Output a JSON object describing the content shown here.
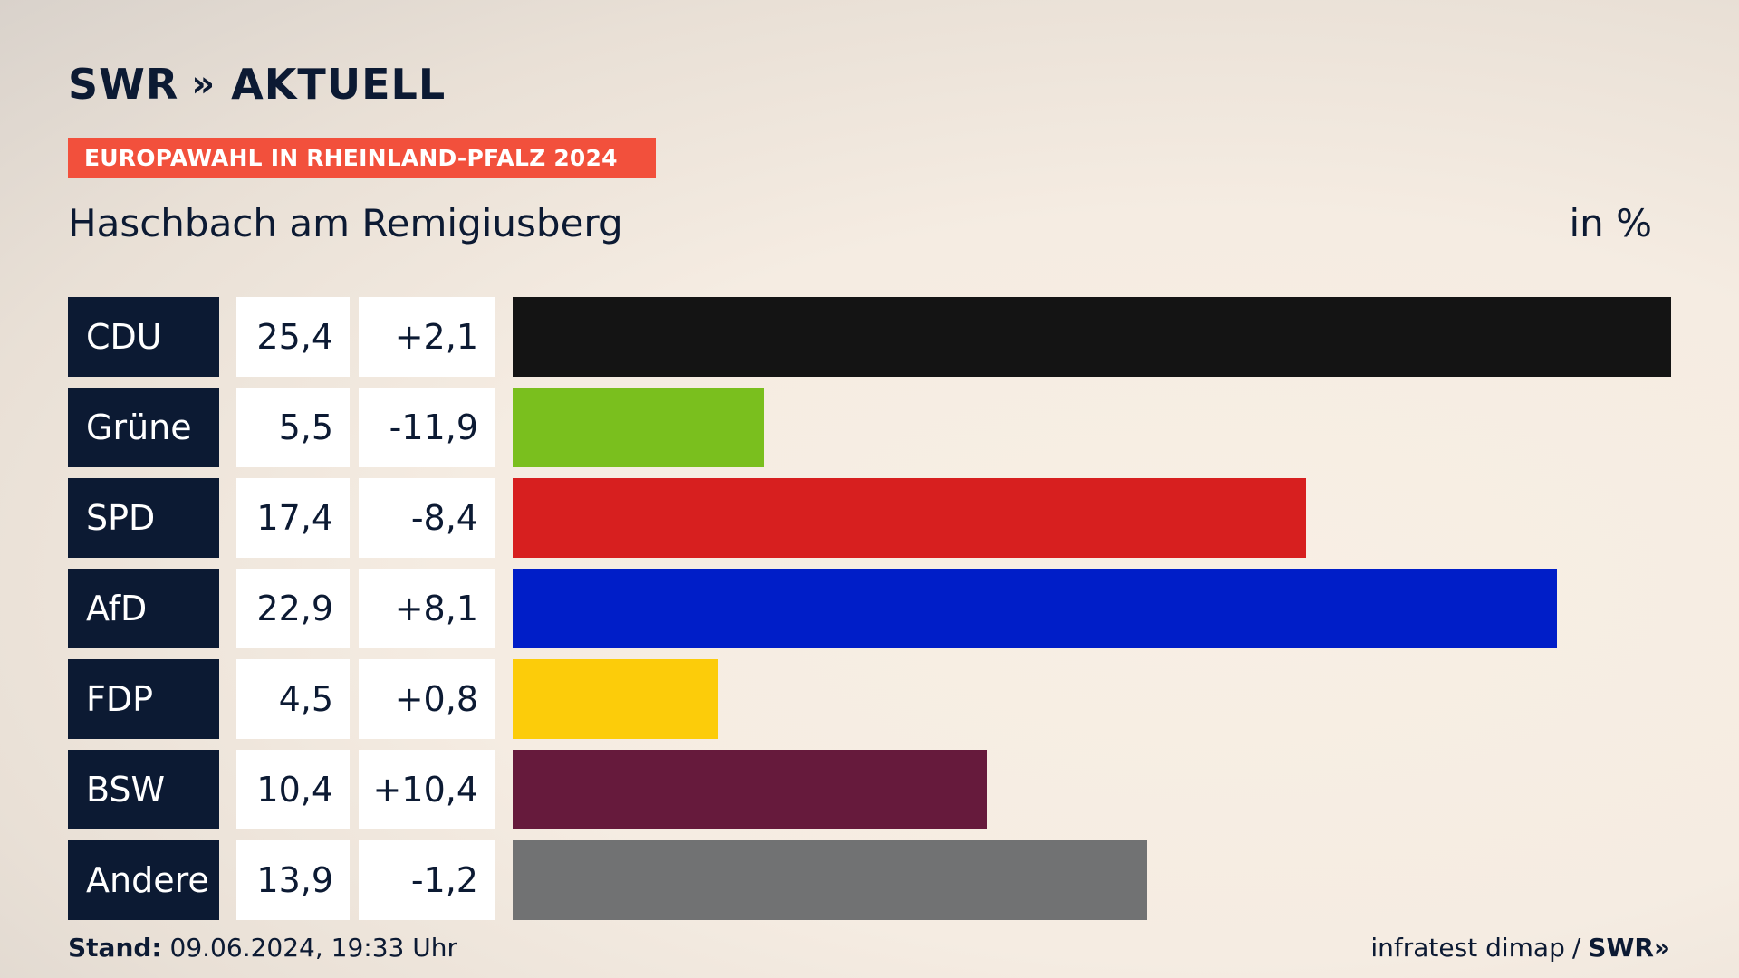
{
  "brand": {
    "name": "SWR",
    "chevrons": "»",
    "product": "AKTUELL"
  },
  "badge": "EUROPAWAHL IN RHEINLAND-PFALZ 2024",
  "place": "Haschbach am Remigiusberg",
  "unit": "in %",
  "footer": {
    "stand_label": "Stand:",
    "stand_value": "09.06.2024, 19:33 Uhr",
    "source": "infratest dimap",
    "separator": "/",
    "source_brand": "SWR",
    "source_chevrons": "»"
  },
  "chart_data": {
    "type": "bar",
    "title": "Haschbach am Remigiusberg",
    "unit": "in %",
    "categories": [
      "CDU",
      "Grüne",
      "SPD",
      "AfD",
      "FDP",
      "BSW",
      "Andere"
    ],
    "values": [
      25.4,
      5.5,
      17.4,
      22.9,
      4.5,
      10.4,
      13.9
    ],
    "value_labels": [
      "25,4",
      "5,5",
      "17,4",
      "22,9",
      "4,5",
      "10,4",
      "13,9"
    ],
    "diff_labels": [
      "+2,1",
      "-11,9",
      "-8,4",
      "+8,1",
      "+0,8",
      "+10,4",
      "-1,2"
    ],
    "colors": [
      "#141414",
      "#7abf1e",
      "#d71f1f",
      "#001ec8",
      "#fccc0a",
      "#661a3c",
      "#717273"
    ],
    "xlim": [
      0,
      25.4
    ]
  }
}
